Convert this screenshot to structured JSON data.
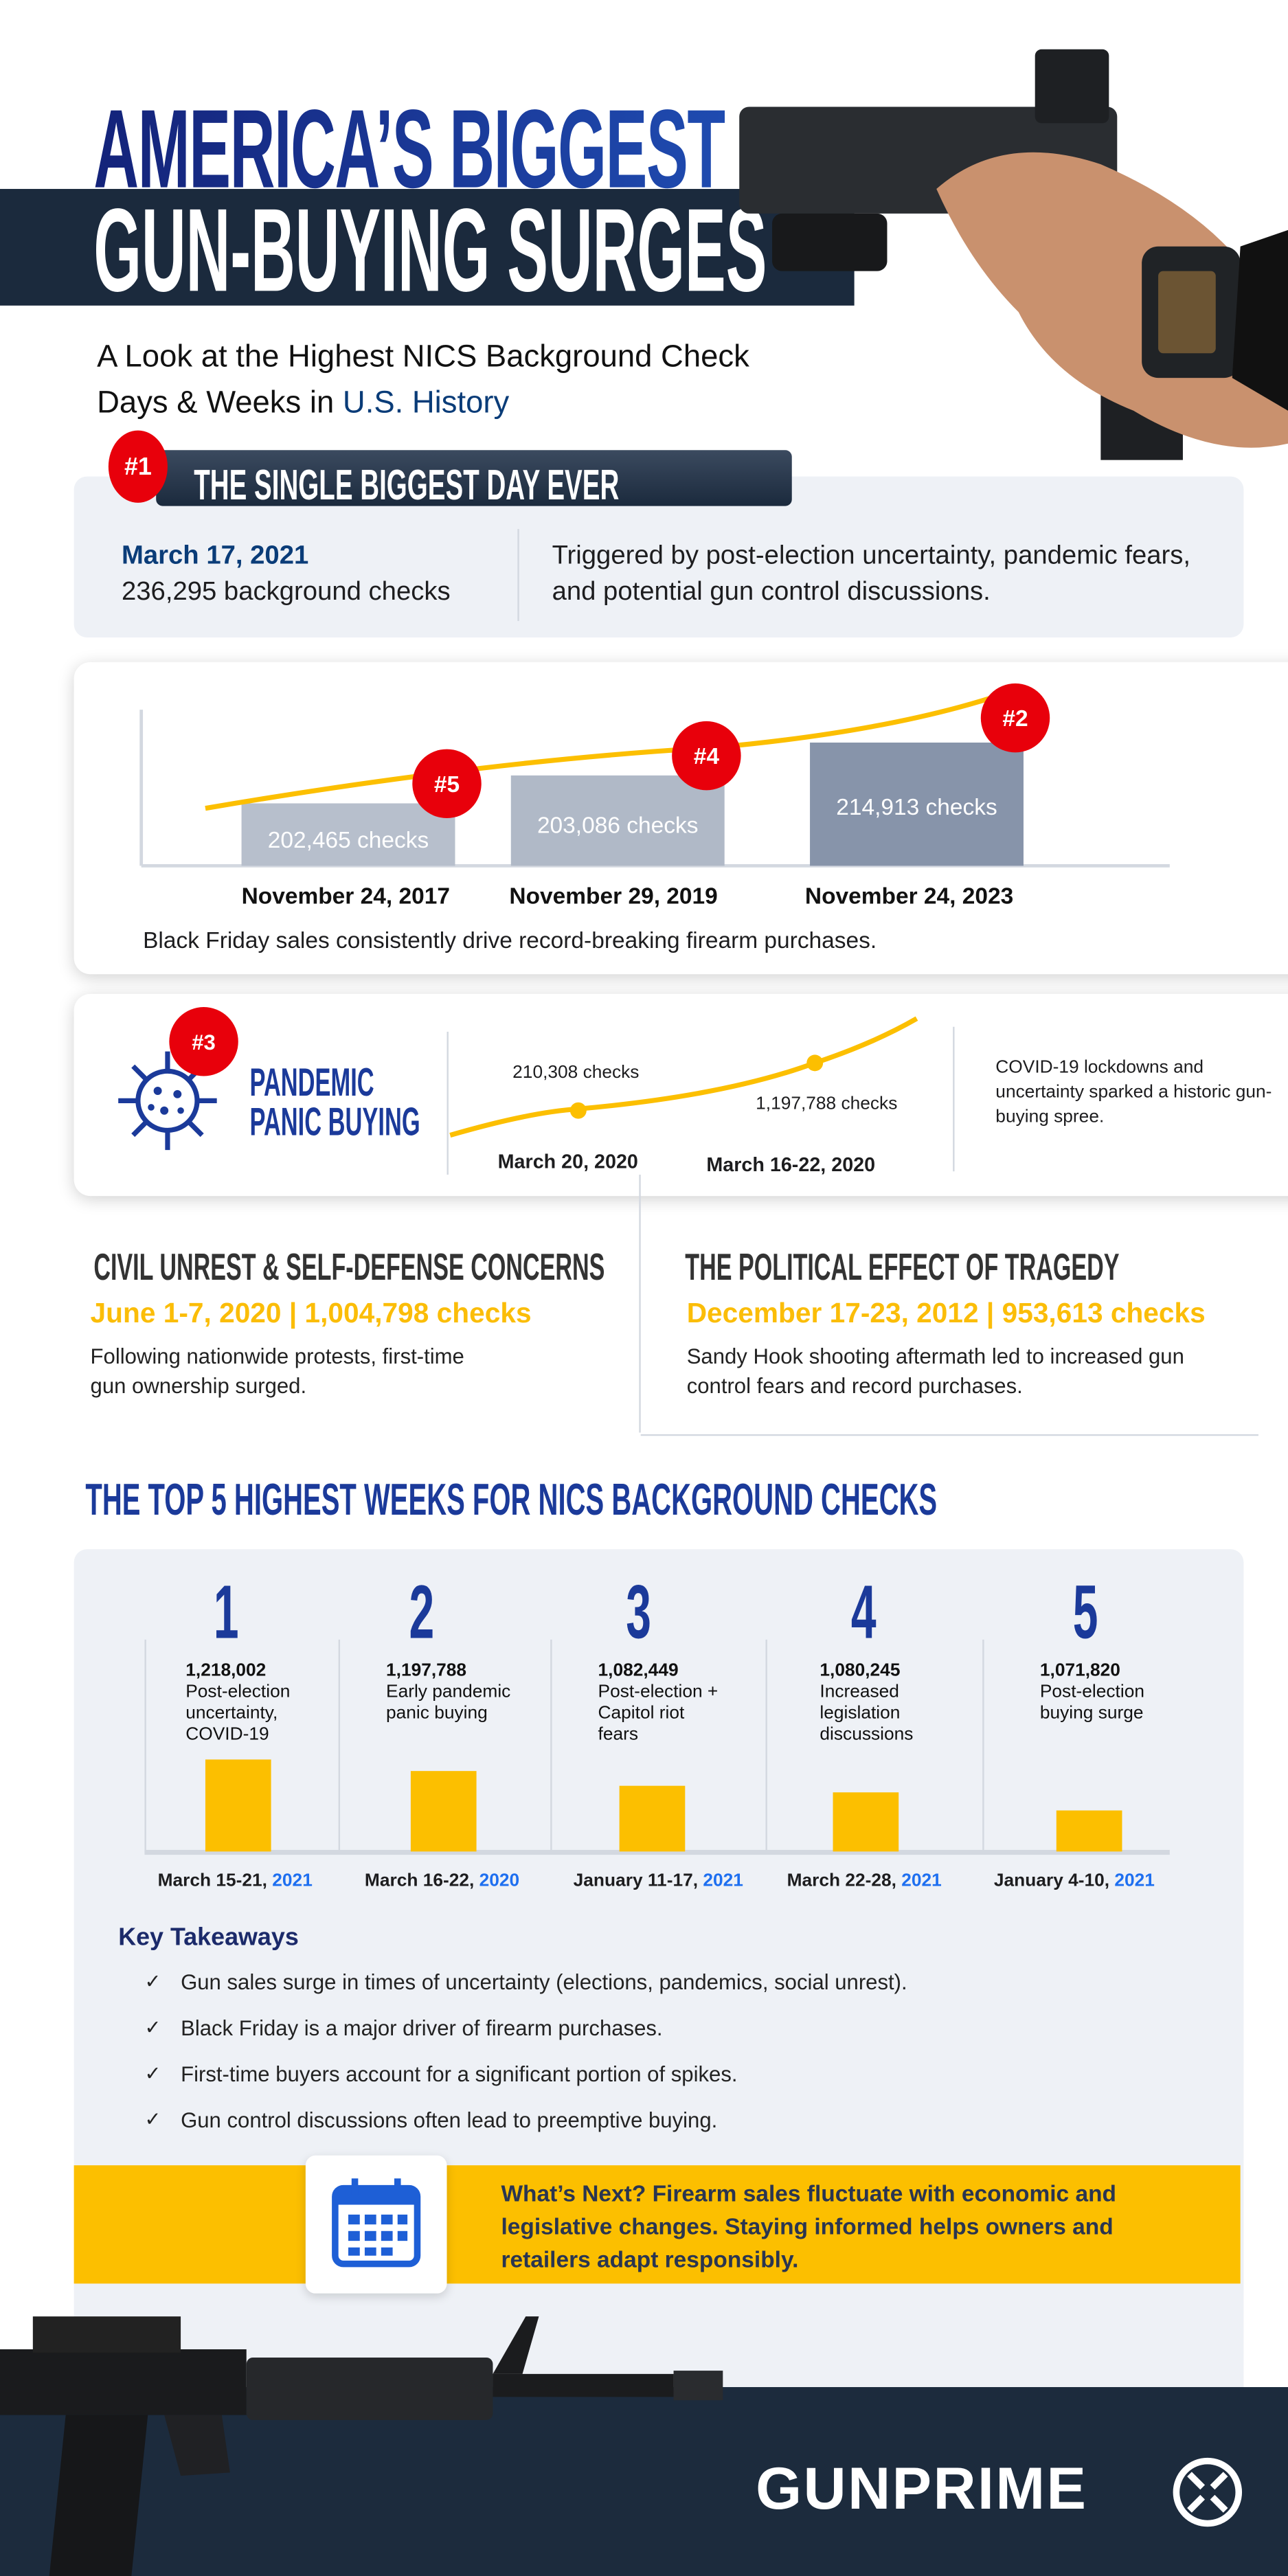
{
  "header": {
    "title_line1": "AMERICA’S BIGGEST",
    "title_line2": "GUN-BUYING SURGES",
    "subtitle_part1": "A Look at the Highest NICS Background Check",
    "subtitle_part2": "Days & Weeks in ",
    "subtitle_highlight": "U.S. History"
  },
  "biggest_day": {
    "rank": "#1",
    "heading": "THE SINGLE BIGGEST DAY EVER",
    "date": "March 17, 2021",
    "checks": "236,295 background checks",
    "description": "Triggered by post-election uncertainty, pandemic fears, and potential gun control discussions."
  },
  "black_friday": {
    "bars": [
      {
        "rank": "#5",
        "value_label": "202,465  checks",
        "date": "November 24, 2017"
      },
      {
        "rank": "#4",
        "value_label": "203,086 checks",
        "date": "November 29, 2019"
      },
      {
        "rank": "#2",
        "value_label": "214,913 checks",
        "date": "November 24, 2023"
      }
    ],
    "caption": "Black Friday sales consistently drive record-breaking firearm purchases."
  },
  "pandemic": {
    "rank": "#3",
    "title_line1": "PANDEMIC",
    "title_line2": "PANIC BUYING",
    "points": [
      {
        "label": "210,308 checks",
        "date": "March 20, 2020"
      },
      {
        "label": "1,197,788 checks",
        "date": "March 16-22, 2020"
      }
    ],
    "description": "COVID-19 lockdowns and uncertainty sparked a historic gun-buying spree."
  },
  "civil_unrest": {
    "heading": "CIVIL UNREST & SELF-DEFENSE CONCERNS",
    "stat": "June 1-7, 2020 | 1,004,798 checks",
    "description": "Following nationwide protests, first-time gun ownership surged."
  },
  "tragedy": {
    "heading": "THE POLITICAL EFFECT OF TRAGEDY",
    "stat": "December 17-23, 2012 | 953,613 checks",
    "description": "Sandy Hook shooting aftermath led to increased gun control fears and record purchases."
  },
  "top5": {
    "heading": "THE TOP 5 HIGHEST WEEKS FOR NICS BACKGROUND CHECKS",
    "weeks": [
      {
        "rank": "1",
        "checks": "1,218,002",
        "reason": "Post-election uncertainty, COVID-19",
        "dates": "March 15-21, ",
        "year": "2021"
      },
      {
        "rank": "2",
        "checks": "1,197,788",
        "reason": "Early pandemic panic buying",
        "dates": "March 16-22, ",
        "year": "2020"
      },
      {
        "rank": "3",
        "checks": "1,082,449",
        "reason": "Post-election + Capitol riot fears",
        "dates": "January 11-17, ",
        "year": "2021"
      },
      {
        "rank": "4",
        "checks": "1,080,245",
        "reason": "Increased legislation discussions",
        "dates": "March 22-28, ",
        "year": "2021"
      },
      {
        "rank": "5",
        "checks": "1,071,820",
        "reason": "Post-election buying surge",
        "dates": "January 4-10, ",
        "year": "2021"
      }
    ]
  },
  "takeaways": {
    "heading": "Key Takeaways",
    "items": [
      "Gun sales surge in times of uncertainty (elections, pandemics, social unrest).",
      "Black Friday is a major driver of firearm purchases.",
      "First-time buyers account for a significant portion of spikes.",
      "Gun control discussions often lead to preemptive buying."
    ]
  },
  "whats_next": {
    "text": "What’s Next? Firearm sales fluctuate with economic and legislative changes. Staying informed helps owners and retailers adapt responsibly."
  },
  "footer": {
    "logo": "GUNPRIME"
  },
  "colors": {
    "navy": "#1b3a9a",
    "dark": "#1b2a3d",
    "yellow": "#fcbf00",
    "red": "#e8000b",
    "year_blue": "#1e6ff0"
  }
}
